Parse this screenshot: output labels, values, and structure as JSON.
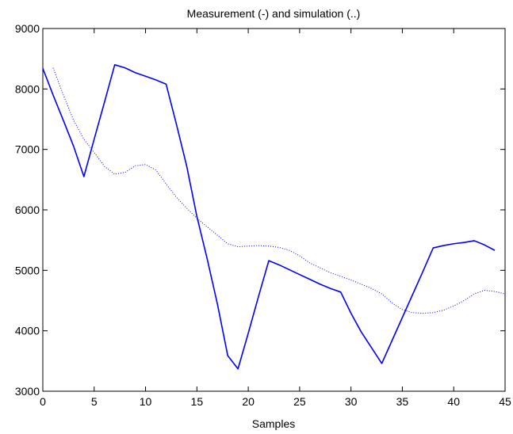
{
  "chart_data": {
    "type": "line",
    "title": "Measurement (-) and simulation (..)",
    "xlabel": "Samples",
    "ylabel": "",
    "xlim": [
      0,
      45
    ],
    "ylim": [
      3000,
      9000
    ],
    "xticks": [
      0,
      5,
      10,
      15,
      20,
      25,
      30,
      35,
      40,
      45
    ],
    "yticks": [
      3000,
      4000,
      5000,
      6000,
      7000,
      8000,
      9000
    ],
    "grid": false,
    "line_color": "#0000ff",
    "series": [
      {
        "style": "solid",
        "x": [
          0,
          1,
          2,
          3,
          4,
          5,
          6,
          7,
          8,
          9,
          10,
          11,
          12,
          13,
          14,
          15,
          16,
          17,
          18,
          19,
          20,
          21,
          22,
          23,
          24,
          25,
          26,
          27,
          28,
          29,
          30,
          31,
          32,
          33,
          34,
          35,
          36,
          37,
          38,
          39,
          40,
          41,
          42,
          43,
          44
        ],
        "y": [
          8340,
          7900,
          7480,
          7050,
          6550,
          7170,
          7780,
          8400,
          8350,
          8270,
          8210,
          8150,
          8080,
          7420,
          6730,
          5890,
          5190,
          4440,
          3590,
          3370,
          3960,
          4570,
          5160,
          5090,
          5010,
          4930,
          4850,
          4770,
          4700,
          4640,
          4290,
          3980,
          3720,
          3460,
          3840,
          4220,
          4600,
          4980,
          5370,
          5410,
          5440,
          5460,
          5490,
          5420,
          5330
        ]
      },
      {
        "style": "dotted",
        "x": [
          1,
          2,
          3,
          4,
          5,
          6,
          7,
          8,
          9,
          10,
          11,
          12,
          13,
          14,
          15,
          16,
          17,
          18,
          19,
          20,
          21,
          22,
          23,
          24,
          25,
          26,
          27,
          28,
          29,
          30,
          31,
          32,
          33,
          34,
          35,
          36,
          37,
          38,
          39,
          40,
          41,
          42,
          43,
          44,
          45
        ],
        "y": [
          8350,
          7900,
          7480,
          7170,
          6950,
          6720,
          6590,
          6620,
          6730,
          6750,
          6660,
          6430,
          6210,
          6030,
          5860,
          5720,
          5580,
          5440,
          5390,
          5400,
          5410,
          5400,
          5380,
          5330,
          5240,
          5120,
          5040,
          4960,
          4900,
          4840,
          4770,
          4700,
          4610,
          4460,
          4350,
          4300,
          4290,
          4300,
          4340,
          4410,
          4500,
          4610,
          4670,
          4650,
          4610
        ]
      }
    ]
  }
}
